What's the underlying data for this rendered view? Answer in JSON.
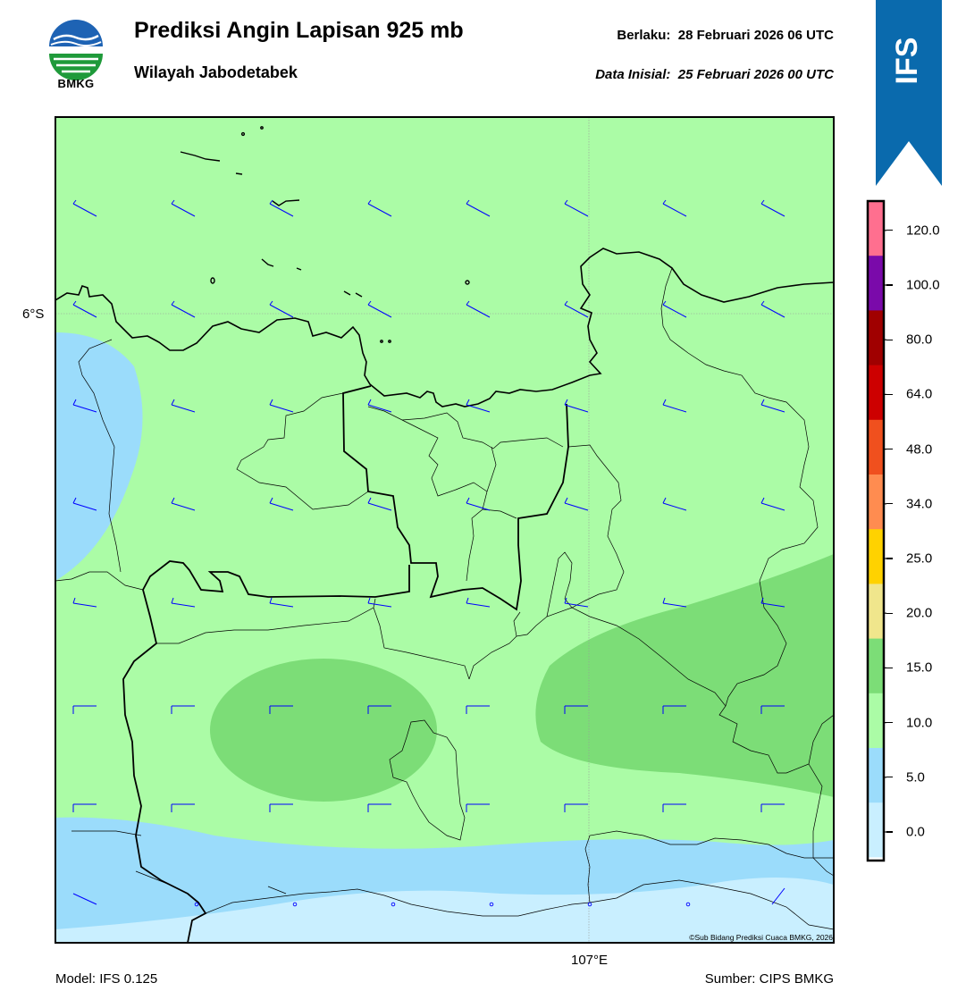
{
  "header": {
    "title": "Prediksi Angin Lapisan 925 mb",
    "subtitle": "Wilayah Jabodetabek",
    "valid_label": "Berlaku:",
    "valid_value": "28 Februari 2026 06 UTC",
    "init_label": "Data Inisial:",
    "init_value": "25 Februari 2026 00 UTC"
  },
  "logo": {
    "text": "BMKG",
    "icon": "bmkg-logo-icon"
  },
  "ribbon": {
    "text": "IFS",
    "color": "#0a6aad"
  },
  "map": {
    "lat_label": "6°S",
    "lon_label": "107°E",
    "copyright": "©Sub Bidang Prediksi Cuaca BMKG, 2026",
    "layer_colors": {
      "0-5": "#c9efff",
      "5-10": "#9bdcfb",
      "10-15": "#abfca6",
      "15-20": "#7cdd77"
    },
    "boundary_color": "#000000",
    "barb_color": "#0000ff"
  },
  "footer": {
    "model": "Model: IFS 0.125",
    "source": "Sumber: CIPS BMKG"
  },
  "colorbar": {
    "tick_labels": [
      "0.0",
      "5.0",
      "10.0",
      "15.0",
      "20.0",
      "25.0",
      "34.0",
      "48.0",
      "64.0",
      "80.0",
      "100.0",
      "120.0"
    ],
    "colors": [
      "#ffffff",
      "#c9efff",
      "#9bdcfb",
      "#abfca6",
      "#7cdd77",
      "#f0e68c",
      "#ffd200",
      "#ff8c50",
      "#f0501e",
      "#cd0000",
      "#a00000",
      "#7a0aaa",
      "#ff6f8f"
    ]
  }
}
